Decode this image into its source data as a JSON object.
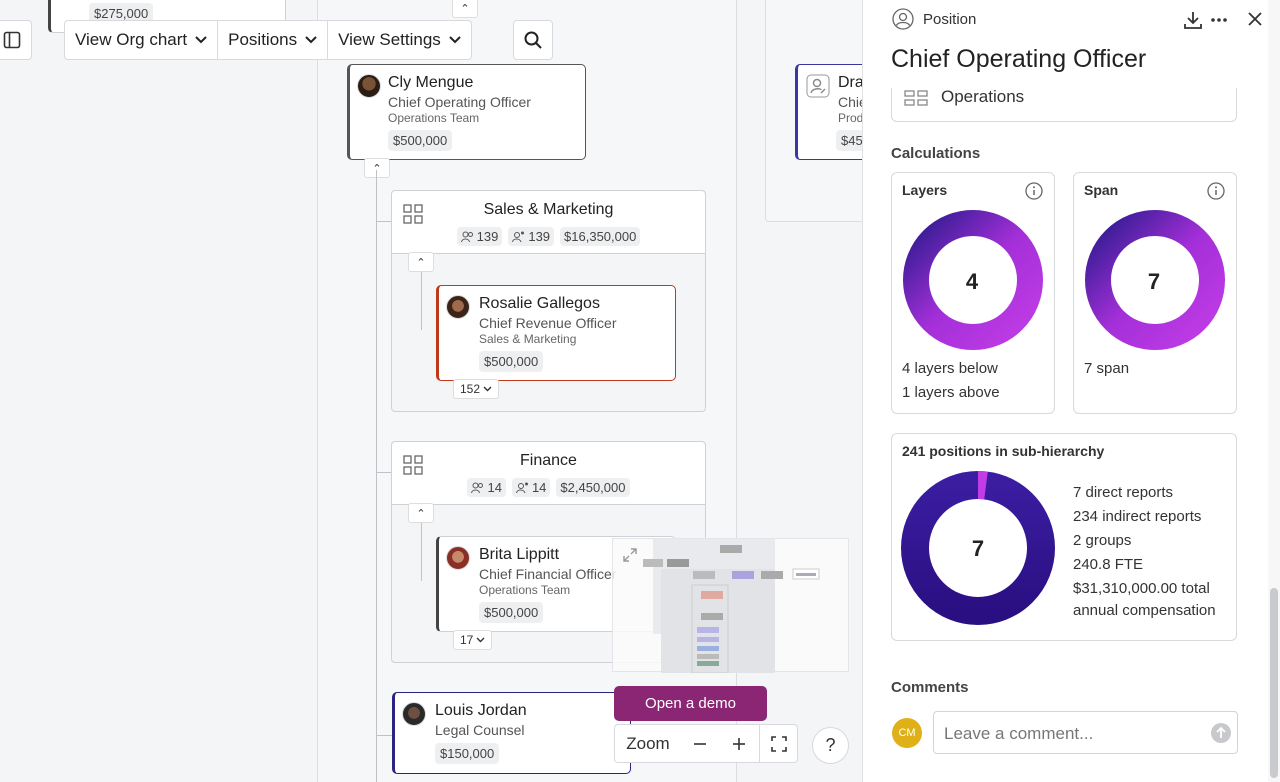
{
  "toolbar": {
    "view_org_chart": "View Org chart",
    "positions": "Positions",
    "view_settings": "View Settings"
  },
  "chart": {
    "top_left_card": {
      "salary": "$275,000"
    },
    "selected": {
      "name": "Cly Mengue",
      "role": "Chief Operating Officer",
      "team": "Operations Team",
      "salary": "$500,000"
    },
    "right_card": {
      "name": "Dra",
      "role": "Chie",
      "team": "Prod",
      "salary": "$45"
    },
    "groups": [
      {
        "title": "Sales & Marketing",
        "headcount": "139",
        "positions": "139",
        "budget": "$16,350,000"
      },
      {
        "title": "Finance",
        "headcount": "14",
        "positions": "14",
        "budget": "$2,450,000"
      }
    ],
    "rosalie": {
      "name": "Rosalie Gallegos",
      "role": "Chief Revenue Officer",
      "team": "Sales & Marketing",
      "salary": "$500,000",
      "reports": "152"
    },
    "brita": {
      "name": "Brita Lippitt",
      "role": "Chief Financial Officer",
      "team": "Operations Team",
      "salary": "$500,000",
      "reports": "17"
    },
    "louis": {
      "name": "Louis Jordan",
      "role": "Legal Counsel",
      "salary": "$150,000"
    }
  },
  "bottom": {
    "demo": "Open a demo",
    "zoom": "Zoom",
    "help": "?"
  },
  "panel": {
    "kind": "Position",
    "title": "Chief Operating Officer",
    "group_partial": "Operations",
    "calculations_label": "Calculations",
    "layers": {
      "title": "Layers",
      "value": "4",
      "line1": "4 layers below",
      "line2": "1 layers above"
    },
    "span": {
      "title": "Span",
      "value": "7",
      "line1": "7 span"
    },
    "hierarchy": {
      "title": "241 positions in sub-hierarchy",
      "value": "7",
      "lines": [
        "7 direct reports",
        "234 indirect reports",
        "2 groups",
        "240.8 FTE",
        "$31,310,000.00 total",
        "annual compensation"
      ]
    },
    "comments_label": "Comments",
    "comment_placeholder": "Leave a comment...",
    "user_initials": "CM"
  },
  "colors": {
    "accent": "#8a2673",
    "donut_start": "#2f1b8f",
    "donut_end": "#c13ce6"
  }
}
